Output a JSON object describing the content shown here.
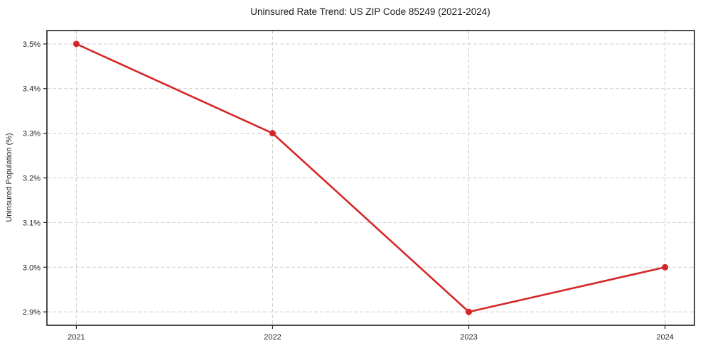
{
  "chart_data": {
    "type": "line",
    "title": "Uninsured Rate Trend: US ZIP Code 85249 (2021-2024)",
    "xlabel": "",
    "ylabel": "Uninsured Population (%)",
    "x": [
      2021,
      2022,
      2023,
      2024
    ],
    "x_tick_labels": [
      "2021",
      "2022",
      "2023",
      "2024"
    ],
    "series": [
      {
        "name": "Uninsured rate",
        "values": [
          3.5,
          3.3,
          2.9,
          3.0
        ],
        "color": "#d62728",
        "marker": "circle"
      }
    ],
    "y_ticks": [
      2.9,
      3.0,
      3.1,
      3.2,
      3.3,
      3.4,
      3.5
    ],
    "y_tick_labels": [
      "2.9%",
      "3.0%",
      "3.1%",
      "3.2%",
      "3.3%",
      "3.4%",
      "3.5%"
    ],
    "xlim": [
      2020.85,
      2024.15
    ],
    "ylim": [
      2.87,
      3.53
    ],
    "grid": true,
    "grid_style": "dashed",
    "grid_color": "#cdcdcd",
    "legend": "none"
  }
}
